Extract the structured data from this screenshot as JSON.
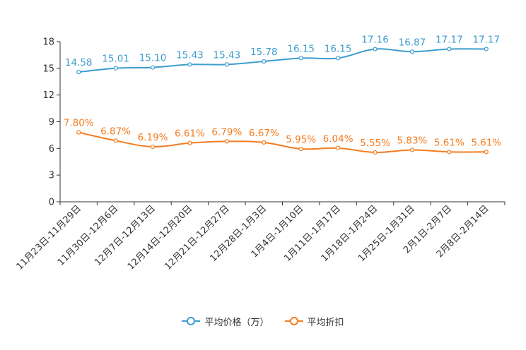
{
  "chart_data": {
    "type": "line",
    "categories": [
      "11月23日-11月29日",
      "11月30日-12月6日",
      "12月7日-12月13日",
      "12月14日-12月20日",
      "12月21日-12月27日",
      "12月28日-1月3日",
      "1月4日-1月10日",
      "1月11日-1月17日",
      "1月18日-1月24日",
      "1月25日-1月31日",
      "2月1日-2月7日",
      "2月8日-2月14日"
    ],
    "series": [
      {
        "name": "平均价格（万）",
        "color": "#3d9dd0",
        "values": [
          14.58,
          15.01,
          15.1,
          15.43,
          15.43,
          15.78,
          16.15,
          16.15,
          17.16,
          16.87,
          17.17,
          17.17
        ],
        "labels": [
          "14.58",
          "15.01",
          "15.10",
          "15.43",
          "15.43",
          "15.78",
          "16.15",
          "16.15",
          "17.16",
          "16.87",
          "17.17",
          "17.17"
        ]
      },
      {
        "name": "平均折扣",
        "color": "#f57c1f",
        "values": [
          7.8,
          6.87,
          6.19,
          6.61,
          6.79,
          6.67,
          5.95,
          6.04,
          5.55,
          5.83,
          5.61,
          5.61
        ],
        "labels": [
          "7.80%",
          "6.87%",
          "6.19%",
          "6.61%",
          "6.79%",
          "6.67%",
          "5.95%",
          "6.04%",
          "5.55%",
          "5.83%",
          "5.61%",
          "5.61%"
        ]
      }
    ],
    "yticks": [
      "0",
      "3",
      "6",
      "9",
      "12",
      "15",
      "18"
    ],
    "ylim": [
      0,
      18
    ],
    "title": "",
    "xlabel": "",
    "ylabel": "",
    "grid": false,
    "legend": "bottom-center"
  }
}
